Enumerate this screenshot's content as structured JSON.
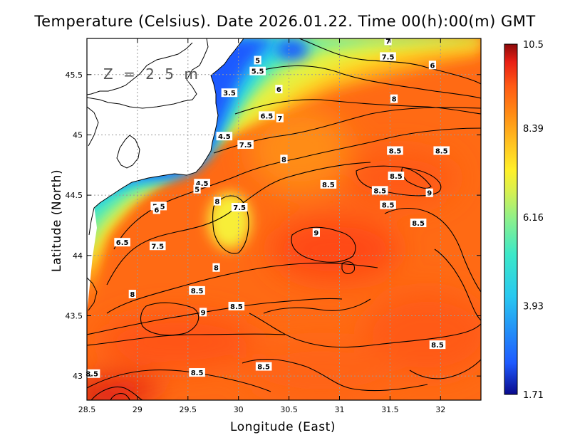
{
  "title": "Temperature (Celsius). Date 2026.01.22. Time 00(h):00(m) GMT",
  "xlabel": "Longitude (East)",
  "ylabel": "Latitude (North)",
  "depth_label": "Z = 2.5 m",
  "colorbar": {
    "labels": [
      "10.5",
      "8.39",
      "6.16",
      "3.93",
      "1.71"
    ],
    "min": 1.71,
    "max": 10.5,
    "colors": [
      "#0a0a8c",
      "#1e5aff",
      "#28c8f0",
      "#3ce8c8",
      "#8cf08c",
      "#d8f050",
      "#fff028",
      "#ffc020",
      "#ff8c14",
      "#ff5a14",
      "#e81e14",
      "#8c0a0a"
    ]
  },
  "chart_data": {
    "type": "heatmap",
    "variable": "Temperature (Celsius)",
    "xlim": [
      28.5,
      32.4
    ],
    "ylim": [
      42.8,
      45.8
    ],
    "x_ticks": [
      "28.5",
      "29",
      "29.5",
      "30",
      "30.5",
      "31",
      "31.5",
      "32"
    ],
    "y_ticks": [
      "43",
      "43.5",
      "44",
      "44.5",
      "45",
      "45.5"
    ],
    "grid": "dotted",
    "contour_labels": [
      {
        "value": "3.5",
        "lon": 29.91,
        "lat": 45.35
      },
      {
        "value": "4.5",
        "lon": 29.86,
        "lat": 44.99
      },
      {
        "value": "4.5",
        "lon": 29.64,
        "lat": 44.6
      },
      {
        "value": "5",
        "lon": 29.59,
        "lat": 44.55
      },
      {
        "value": "5",
        "lon": 30.19,
        "lat": 45.62
      },
      {
        "value": "5.5",
        "lon": 30.19,
        "lat": 45.53
      },
      {
        "value": "5.5",
        "lon": 29.21,
        "lat": 44.41
      },
      {
        "value": "6",
        "lon": 29.19,
        "lat": 44.38
      },
      {
        "value": "6",
        "lon": 30.4,
        "lat": 45.38
      },
      {
        "value": "6",
        "lon": 31.92,
        "lat": 45.58
      },
      {
        "value": "6.5",
        "lon": 30.28,
        "lat": 45.16
      },
      {
        "value": "6.5",
        "lon": 28.85,
        "lat": 44.11
      },
      {
        "value": "7",
        "lon": 30.41,
        "lat": 45.14
      },
      {
        "value": "7",
        "lon": 31.48,
        "lat": 45.78
      },
      {
        "value": "7.5",
        "lon": 30.07,
        "lat": 44.92
      },
      {
        "value": "7.5",
        "lon": 31.48,
        "lat": 45.65
      },
      {
        "value": "7.5",
        "lon": 29.2,
        "lat": 44.08
      },
      {
        "value": "7.5",
        "lon": 30.01,
        "lat": 44.4
      },
      {
        "value": "8",
        "lon": 30.45,
        "lat": 44.8
      },
      {
        "value": "8",
        "lon": 31.54,
        "lat": 45.3
      },
      {
        "value": "8",
        "lon": 29.79,
        "lat": 44.45
      },
      {
        "value": "8",
        "lon": 29.78,
        "lat": 43.9
      },
      {
        "value": "8",
        "lon": 28.95,
        "lat": 43.68
      },
      {
        "value": "8.5",
        "lon": 30.89,
        "lat": 44.59
      },
      {
        "value": "8.5",
        "lon": 31.56,
        "lat": 44.66
      },
      {
        "value": "8.5",
        "lon": 31.4,
        "lat": 44.54
      },
      {
        "value": "8.5",
        "lon": 31.55,
        "lat": 44.87
      },
      {
        "value": "8.5",
        "lon": 32.01,
        "lat": 44.87
      },
      {
        "value": "8.5",
        "lon": 31.48,
        "lat": 44.42
      },
      {
        "value": "8.5",
        "lon": 31.78,
        "lat": 44.27
      },
      {
        "value": "8.5",
        "lon": 29.59,
        "lat": 43.71
      },
      {
        "value": "8.5",
        "lon": 29.98,
        "lat": 43.58
      },
      {
        "value": "8.5",
        "lon": 31.97,
        "lat": 43.26
      },
      {
        "value": "8.5",
        "lon": 30.25,
        "lat": 43.08
      },
      {
        "value": "8.5",
        "lon": 29.59,
        "lat": 43.03
      },
      {
        "value": "8.5",
        "lon": 28.55,
        "lat": 43.02
      },
      {
        "value": "9",
        "lon": 30.77,
        "lat": 44.19
      },
      {
        "value": "9",
        "lon": 31.89,
        "lat": 44.52
      },
      {
        "value": "9",
        "lon": 29.65,
        "lat": 43.53
      }
    ]
  }
}
